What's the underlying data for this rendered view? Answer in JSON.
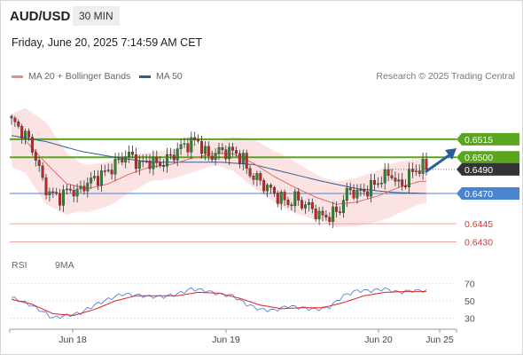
{
  "header": {
    "symbol": "AUD/USD",
    "timeframe": "30 MIN",
    "datetime": "Friday, June 20, 2025 7:14:59 AM CET"
  },
  "legend": {
    "items": [
      {
        "label": "MA 20 + Bollinger Bands",
        "color": "#f08a8a"
      },
      {
        "label": "MA 50",
        "color": "#2f5d9a"
      }
    ],
    "attribution": "Research © 2025 Trading Central"
  },
  "rsi_legend": {
    "items": [
      {
        "label": "RSI",
        "color": "#5b7fd6"
      },
      {
        "label": "9MA",
        "color": "#dd2222"
      }
    ]
  },
  "colors": {
    "up": "#2a8a2a",
    "down": "#cc2222",
    "support": "#4a84cf",
    "resistance": "#5aa51e",
    "pivot": "#f2a0a0",
    "current": "#333333",
    "bollinger_fill": "#fbdede",
    "ma50": "#2f5d9a",
    "ma20": "#e06b6b",
    "arrow": "#2a5f9e"
  },
  "chart_data": [
    {
      "type": "candlestick",
      "ylim": [
        0.6423,
        0.6545
      ],
      "y_ticks": [
        0.6515,
        0.65,
        0.649,
        0.647,
        0.6445,
        0.643
      ],
      "x_ticks": [
        "Jun 18",
        "Jun 19",
        "Jun 20",
        "Jun 25"
      ],
      "levels": [
        {
          "label": "0.6515",
          "value": 0.6515,
          "kind": "resistance"
        },
        {
          "label": "0.6500",
          "value": 0.65,
          "kind": "resistance"
        },
        {
          "label": "0.6490",
          "value": 0.649,
          "kind": "current"
        },
        {
          "label": "0.6470",
          "value": 0.647,
          "kind": "support"
        },
        {
          "label": "0.6445",
          "value": 0.6445,
          "kind": "pivot"
        },
        {
          "label": "0.6430",
          "value": 0.643,
          "kind": "pivot"
        }
      ],
      "anchors": [
        [
          0,
          0.653
        ],
        [
          3,
          0.6522
        ],
        [
          5,
          0.6514
        ],
        [
          7,
          0.65
        ],
        [
          9,
          0.648
        ],
        [
          11,
          0.647
        ],
        [
          14,
          0.6467
        ],
        [
          17,
          0.6474
        ],
        [
          19,
          0.647
        ],
        [
          21,
          0.6477
        ],
        [
          24,
          0.6482
        ],
        [
          27,
          0.6487
        ],
        [
          30,
          0.6494
        ],
        [
          33,
          0.6502
        ],
        [
          35,
          0.65
        ],
        [
          37,
          0.6494
        ],
        [
          40,
          0.6497
        ],
        [
          42,
          0.6494
        ],
        [
          44,
          0.6496
        ],
        [
          46,
          0.65
        ],
        [
          48,
          0.6506
        ],
        [
          50,
          0.651
        ],
        [
          52,
          0.6512
        ],
        [
          54,
          0.6514
        ],
        [
          55,
          0.6508
        ],
        [
          57,
          0.65
        ],
        [
          59,
          0.6504
        ],
        [
          61,
          0.6505
        ],
        [
          63,
          0.6505
        ],
        [
          65,
          0.6503
        ],
        [
          67,
          0.6498
        ],
        [
          68,
          0.649
        ],
        [
          70,
          0.6484
        ],
        [
          72,
          0.648
        ],
        [
          74,
          0.6475
        ],
        [
          76,
          0.647
        ],
        [
          78,
          0.6466
        ],
        [
          80,
          0.6462
        ],
        [
          82,
          0.6466
        ],
        [
          84,
          0.6462
        ],
        [
          86,
          0.6459
        ],
        [
          88,
          0.6455
        ],
        [
          89,
          0.6451
        ],
        [
          91,
          0.6451
        ],
        [
          93,
          0.6453
        ],
        [
          95,
          0.6457
        ],
        [
          96,
          0.6466
        ],
        [
          98,
          0.6473
        ],
        [
          100,
          0.647
        ],
        [
          102,
          0.6472
        ],
        [
          104,
          0.6475
        ],
        [
          106,
          0.648
        ],
        [
          108,
          0.6484
        ],
        [
          110,
          0.6487
        ],
        [
          111,
          0.6479
        ],
        [
          113,
          0.6477
        ],
        [
          115,
          0.6485
        ],
        [
          117,
          0.649
        ],
        [
          119,
          0.6492
        ],
        [
          120,
          0.649
        ]
      ],
      "ma20_anchors": [
        [
          4,
          0.6514
        ],
        [
          10,
          0.6495
        ],
        [
          16,
          0.6478
        ],
        [
          22,
          0.6474
        ],
        [
          28,
          0.6478
        ],
        [
          34,
          0.6486
        ],
        [
          40,
          0.6492
        ],
        [
          46,
          0.6494
        ],
        [
          52,
          0.6499
        ],
        [
          58,
          0.6503
        ],
        [
          64,
          0.6503
        ],
        [
          70,
          0.6495
        ],
        [
          76,
          0.6484
        ],
        [
          82,
          0.6475
        ],
        [
          88,
          0.6467
        ],
        [
          94,
          0.6461
        ],
        [
          100,
          0.6463
        ],
        [
          106,
          0.6468
        ],
        [
          112,
          0.6475
        ],
        [
          118,
          0.648
        ]
      ],
      "ma50_anchors": [
        [
          0,
          0.6518
        ],
        [
          10,
          0.6513
        ],
        [
          20,
          0.6505
        ],
        [
          30,
          0.65
        ],
        [
          40,
          0.6496
        ],
        [
          50,
          0.6496
        ],
        [
          60,
          0.6496
        ],
        [
          70,
          0.6494
        ],
        [
          80,
          0.6487
        ],
        [
          90,
          0.648
        ],
        [
          100,
          0.6474
        ],
        [
          110,
          0.6471
        ],
        [
          120,
          0.647
        ]
      ],
      "bb_width_anchors": [
        [
          0,
          0.0022
        ],
        [
          10,
          0.0034
        ],
        [
          20,
          0.002
        ],
        [
          30,
          0.0018
        ],
        [
          40,
          0.0012
        ],
        [
          50,
          0.0012
        ],
        [
          60,
          0.001
        ],
        [
          70,
          0.002
        ],
        [
          80,
          0.0022
        ],
        [
          90,
          0.0018
        ],
        [
          100,
          0.002
        ],
        [
          110,
          0.0022
        ],
        [
          120,
          0.0018
        ]
      ]
    },
    {
      "type": "line",
      "ylim": [
        20,
        78
      ],
      "y_ticks": [
        70,
        50,
        30
      ],
      "rsi_anchors": [
        [
          0,
          54
        ],
        [
          4,
          48
        ],
        [
          8,
          40
        ],
        [
          12,
          30
        ],
        [
          16,
          33
        ],
        [
          20,
          36
        ],
        [
          24,
          45
        ],
        [
          28,
          52
        ],
        [
          32,
          58
        ],
        [
          36,
          57
        ],
        [
          40,
          55
        ],
        [
          44,
          55
        ],
        [
          48,
          58
        ],
        [
          52,
          64
        ],
        [
          56,
          62
        ],
        [
          60,
          58
        ],
        [
          64,
          56
        ],
        [
          68,
          46
        ],
        [
          72,
          40
        ],
        [
          76,
          39
        ],
        [
          80,
          44
        ],
        [
          84,
          42
        ],
        [
          88,
          40
        ],
        [
          92,
          43
        ],
        [
          96,
          56
        ],
        [
          100,
          62
        ],
        [
          104,
          62
        ],
        [
          108,
          64
        ],
        [
          112,
          60
        ],
        [
          116,
          62
        ],
        [
          120,
          62
        ]
      ],
      "ma9_anchors": [
        [
          0,
          52
        ],
        [
          6,
          46
        ],
        [
          12,
          35
        ],
        [
          18,
          33
        ],
        [
          24,
          40
        ],
        [
          30,
          50
        ],
        [
          36,
          56
        ],
        [
          42,
          56
        ],
        [
          48,
          56
        ],
        [
          54,
          60
        ],
        [
          60,
          59
        ],
        [
          66,
          53
        ],
        [
          72,
          45
        ],
        [
          78,
          41
        ],
        [
          84,
          42
        ],
        [
          90,
          42
        ],
        [
          96,
          48
        ],
        [
          102,
          56
        ],
        [
          108,
          60
        ],
        [
          114,
          61
        ],
        [
          120,
          61
        ]
      ]
    }
  ]
}
